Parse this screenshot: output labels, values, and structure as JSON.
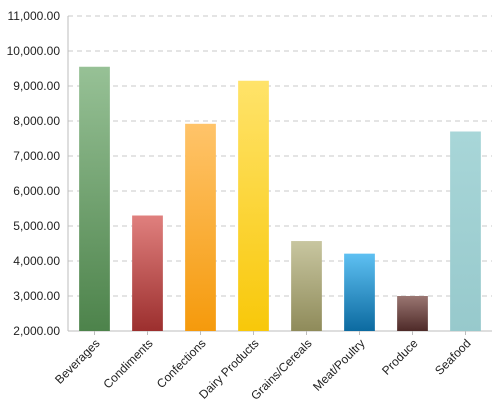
{
  "chart_data": {
    "type": "bar",
    "title": "",
    "xlabel": "",
    "ylabel": "",
    "categories": [
      "Beverages",
      "Condiments",
      "Confections",
      "Dairy Products",
      "Grains/Cereals",
      "Meat/Poultry",
      "Produce",
      "Seafood"
    ],
    "values": [
      9550,
      5300,
      7920,
      9150,
      4570,
      4210,
      3000,
      7700
    ],
    "ylim": [
      2000,
      11000
    ],
    "yticks": [
      "2,000.00",
      "3,000.00",
      "4,000.00",
      "5,000.00",
      "6,000.00",
      "7,000.00",
      "8,000.00",
      "9,000.00",
      "10,000.00",
      "11,000.00"
    ],
    "grid": "horizontal dashed",
    "legend": "none",
    "colors": [
      [
        "#97c196",
        "#4d834b"
      ],
      [
        "#e0807e",
        "#9c2f2e"
      ],
      [
        "#ffc46a",
        "#f59a0c"
      ],
      [
        "#ffe36a",
        "#f8c80a"
      ],
      [
        "#c8c6a0",
        "#8f8b5a"
      ],
      [
        "#5ec0f2",
        "#0c6aa0"
      ],
      [
        "#9a7672",
        "#4e2a28"
      ],
      [
        "#a8d6d8",
        "#97c9cc"
      ]
    ]
  }
}
